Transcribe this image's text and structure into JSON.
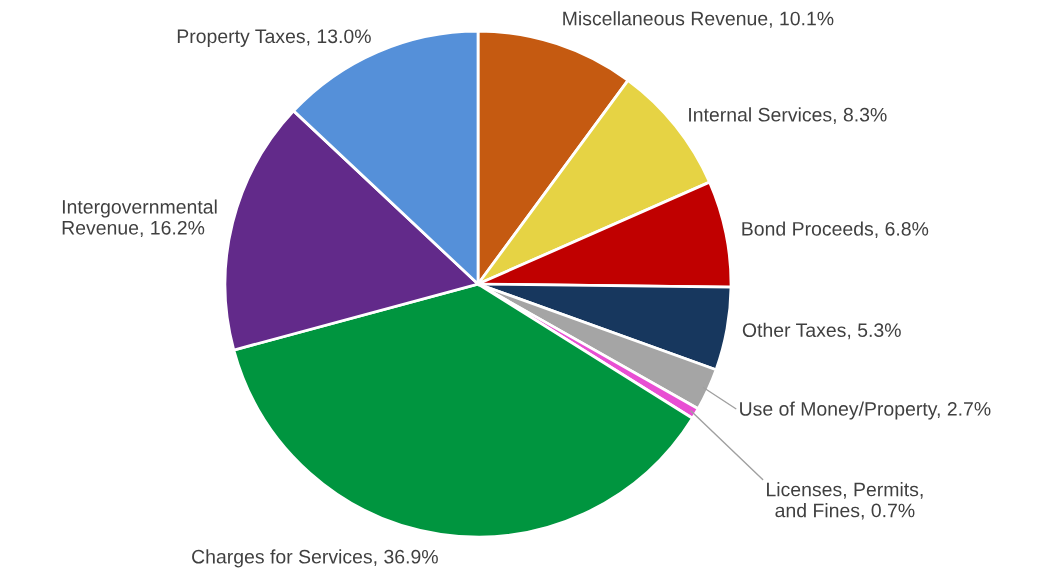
{
  "chart_data": {
    "type": "pie",
    "categories": [
      "Miscellaneous Revenue",
      "Internal Services",
      "Bond Proceeds",
      "Other Taxes",
      "Use of Money/Property",
      "Licenses, Permits,\nand Fines",
      "Charges for Services",
      "Intergovernmental\nRevenue",
      "Property Taxes"
    ],
    "values": [
      10.1,
      8.3,
      6.8,
      5.3,
      2.7,
      0.7,
      36.9,
      16.2,
      13.0
    ],
    "value_labels": [
      "10.1%",
      "8.3%",
      "6.8%",
      "5.3%",
      "2.7%",
      "0.7%",
      "36.9%",
      "16.2%",
      "13.0%"
    ],
    "colors": [
      "#c55a11",
      "#e6d344",
      "#c00000",
      "#17375e",
      "#a5a5a5",
      "#e84fd3",
      "#00953f",
      "#622a8a",
      "#5590d9"
    ]
  }
}
